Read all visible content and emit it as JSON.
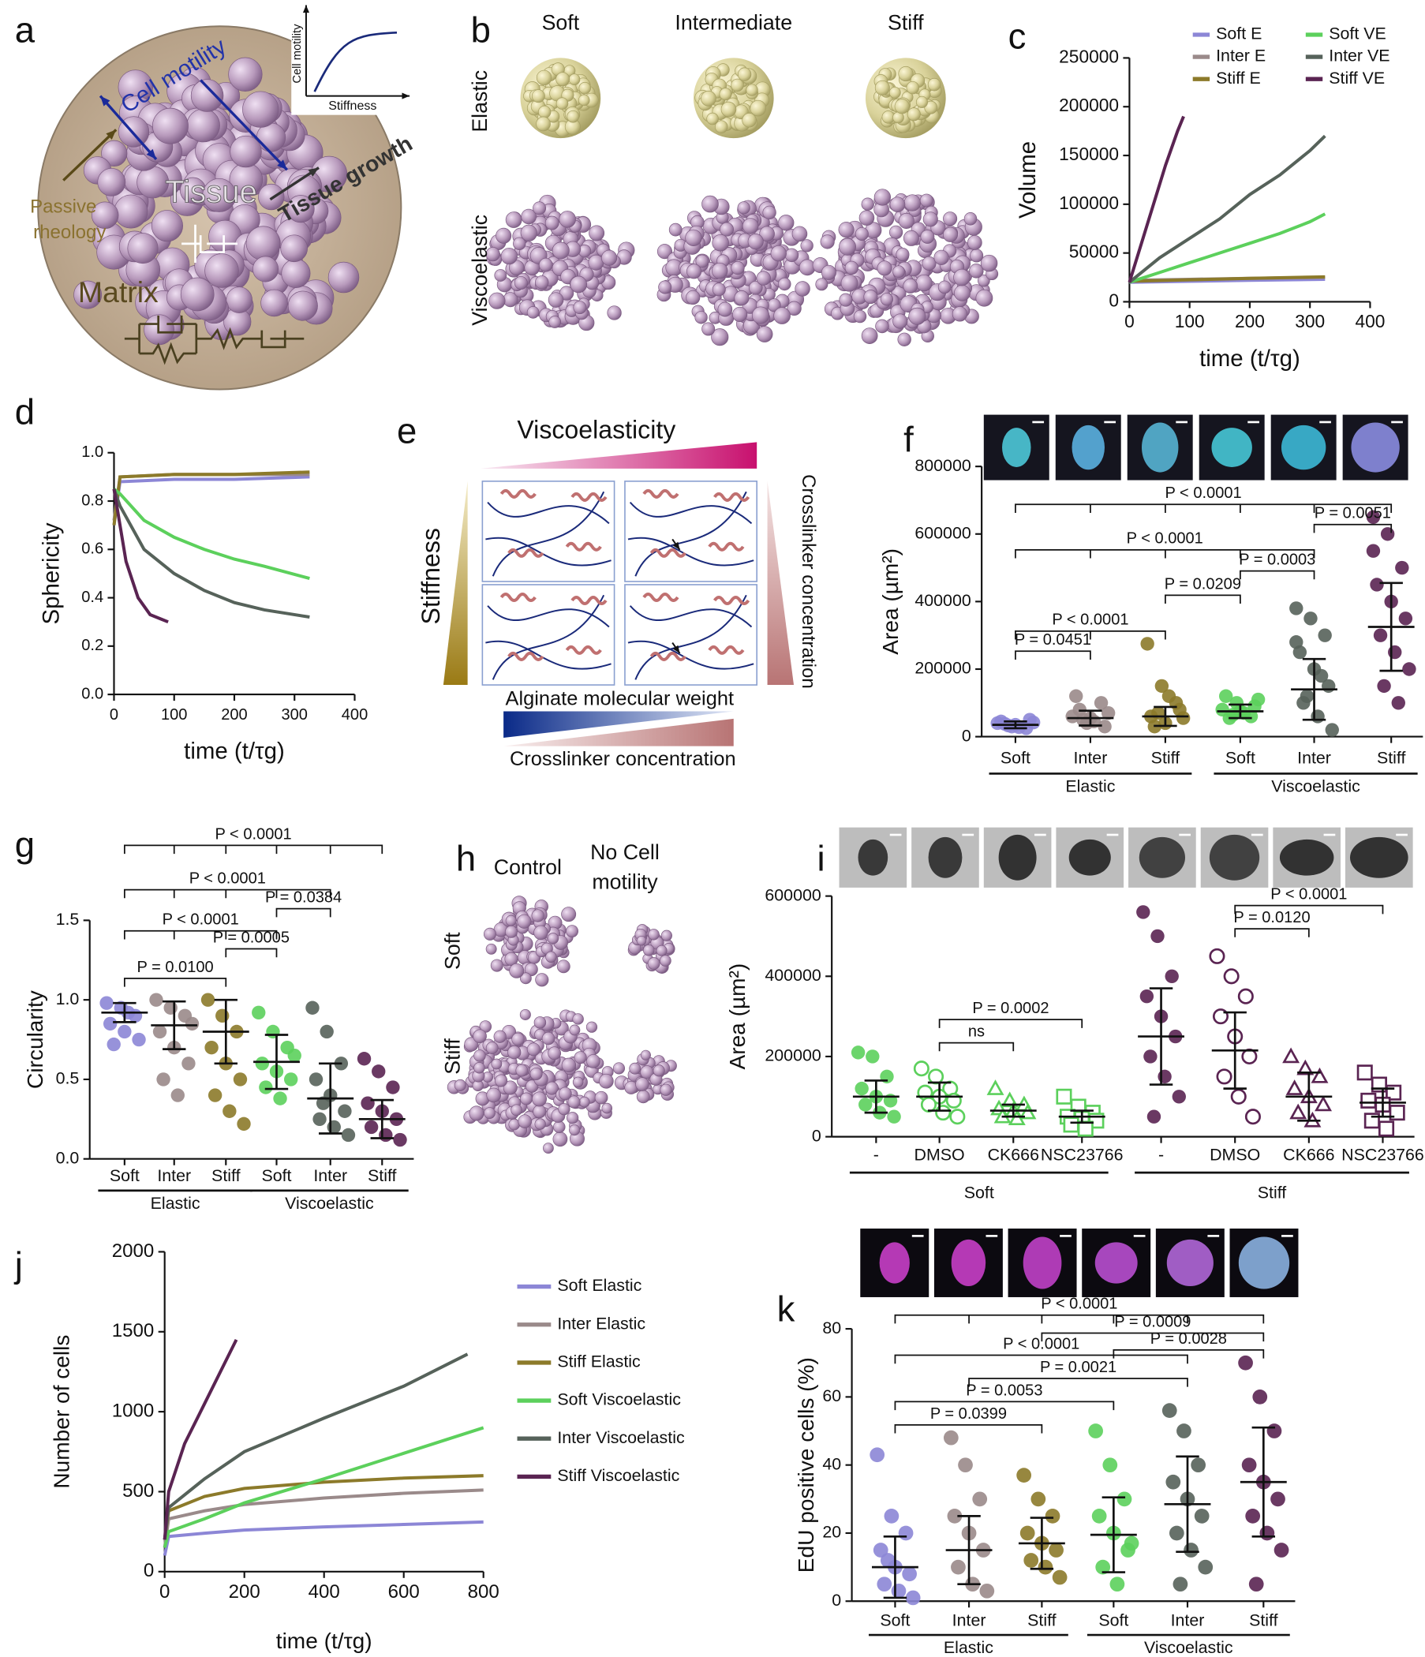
{
  "chart_data": [
    {
      "panel": "c",
      "type": "line",
      "ylabel": "Volume",
      "xlabel": "time (t/τg)",
      "xlim": [
        0,
        400
      ],
      "xticks": [
        0,
        100,
        200,
        300,
        400
      ],
      "ylim": [
        0,
        250000
      ],
      "yticks": [
        0,
        50000,
        100000,
        150000,
        200000,
        250000
      ],
      "legend": "top-right",
      "series": [
        {
          "name": "Soft E",
          "color": "#8c86d6",
          "x": [
            0,
            100,
            200,
            325
          ],
          "values": [
            20000,
            21000,
            22000,
            23000
          ]
        },
        {
          "name": "Inter E",
          "color": "#9a8a8a",
          "x": [
            0,
            100,
            200,
            325
          ],
          "values": [
            22000,
            23000,
            24000,
            25000
          ]
        },
        {
          "name": "Stiff E",
          "color": "#8c7a2a",
          "x": [
            0,
            100,
            200,
            325
          ],
          "values": [
            21000,
            22500,
            24000,
            25500
          ]
        },
        {
          "name": "Soft VE",
          "color": "#5cd05c",
          "x": [
            0,
            50,
            100,
            150,
            200,
            250,
            300,
            325
          ],
          "values": [
            20000,
            30000,
            40000,
            50000,
            60000,
            70000,
            82000,
            90000
          ]
        },
        {
          "name": "Inter VE",
          "color": "#56625a",
          "x": [
            0,
            50,
            100,
            150,
            200,
            250,
            300,
            325
          ],
          "values": [
            20000,
            45000,
            65000,
            85000,
            110000,
            130000,
            155000,
            170000
          ]
        },
        {
          "name": "Stiff VE",
          "color": "#5a2452",
          "x": [
            0,
            20,
            40,
            60,
            80,
            90
          ],
          "values": [
            20000,
            60000,
            100000,
            140000,
            175000,
            190000
          ]
        }
      ]
    },
    {
      "panel": "d",
      "type": "line",
      "ylabel": "Sphericity",
      "xlabel": "time (t/τg)",
      "xlim": [
        0,
        400
      ],
      "xticks": [
        0,
        100,
        200,
        300,
        400
      ],
      "ylim": [
        0,
        1
      ],
      "yticks": [
        {
          "value": 0,
          "label": "0.0"
        },
        0.2,
        0.4,
        0.6,
        0.8,
        {
          "value": 1,
          "label": "1.0"
        }
      ],
      "series": [
        {
          "color": "#8c86d6",
          "x": [
            0,
            10,
            100,
            200,
            325
          ],
          "values": [
            0.7,
            0.88,
            0.89,
            0.89,
            0.9
          ]
        },
        {
          "color": "#9a8a8a",
          "x": [
            0,
            10,
            100,
            200,
            325
          ],
          "values": [
            0.72,
            0.9,
            0.91,
            0.91,
            0.91
          ]
        },
        {
          "color": "#8c7a2a",
          "x": [
            0,
            10,
            100,
            200,
            325
          ],
          "values": [
            0.7,
            0.9,
            0.91,
            0.91,
            0.92
          ]
        },
        {
          "color": "#5cd05c",
          "x": [
            0,
            10,
            50,
            100,
            150,
            200,
            250,
            325
          ],
          "values": [
            0.85,
            0.83,
            0.72,
            0.65,
            0.6,
            0.56,
            0.53,
            0.48
          ]
        },
        {
          "color": "#56625a",
          "x": [
            0,
            10,
            50,
            100,
            150,
            200,
            250,
            325
          ],
          "values": [
            0.85,
            0.78,
            0.6,
            0.5,
            0.43,
            0.38,
            0.35,
            0.32
          ]
        },
        {
          "color": "#5a2452",
          "x": [
            0,
            10,
            20,
            40,
            60,
            80,
            90
          ],
          "values": [
            0.85,
            0.7,
            0.55,
            0.4,
            0.33,
            0.31,
            0.3
          ]
        }
      ]
    },
    {
      "panel": "f",
      "type": "dot",
      "ylabel": "Area (µm²)",
      "ylim": [
        0,
        800000
      ],
      "yticks": [
        0,
        200000,
        400000,
        600000,
        800000
      ],
      "categories": [
        "Soft",
        "Inter",
        "Stiff",
        "Soft",
        "Inter",
        "Stiff"
      ],
      "groups": [
        "Elastic",
        "Viscoelastic"
      ],
      "colors": [
        "#8c86d6",
        "#9a8a8a",
        "#8c7a2a",
        "#5cd05c",
        "#56625a",
        "#5a2452"
      ],
      "means": [
        35000,
        55000,
        60000,
        75000,
        140000,
        325000
      ],
      "sd": [
        10000,
        22000,
        28000,
        20000,
        90000,
        130000
      ],
      "points": [
        [
          40000,
          30000,
          25000,
          45000,
          35000,
          50000,
          38000,
          28000,
          42000,
          33000
        ],
        [
          60000,
          40000,
          100000,
          120000,
          55000,
          30000,
          80000,
          45000,
          70000,
          50000
        ],
        [
          275000,
          150000,
          100000,
          60000,
          40000,
          80000,
          30000,
          120000,
          55000,
          70000
        ],
        [
          80000,
          100000,
          60000,
          120000,
          75000,
          90000,
          55000,
          70000,
          110000,
          65000
        ],
        [
          380000,
          350000,
          300000,
          250000,
          200000,
          150000,
          100000,
          60000,
          20000,
          120000,
          180000,
          280000
        ],
        [
          650000,
          600000,
          500000,
          450000,
          400000,
          350000,
          300000,
          250000,
          200000,
          150000,
          100000,
          550000
        ]
      ],
      "comparisons": [
        "P < 0.0001",
        "P = 0.0051",
        "P < 0.0001",
        "P = 0.0003",
        "P = 0.0209",
        "P < 0.0001",
        "P = 0.0451"
      ]
    },
    {
      "panel": "g",
      "type": "dot",
      "ylabel": "Circularity",
      "ylim": [
        0,
        1.5
      ],
      "yticks": [
        {
          "value": 0,
          "label": "0.0"
        },
        0.5,
        {
          "value": 1,
          "label": "1.0"
        },
        1.5
      ],
      "categories": [
        "Soft",
        "Inter",
        "Stiff",
        "Soft",
        "Inter",
        "Stiff"
      ],
      "groups": [
        "Elastic",
        "Viscoelastic"
      ],
      "colors": [
        "#8c86d6",
        "#9a8a8a",
        "#8c7a2a",
        "#5cd05c",
        "#56625a",
        "#5a2452"
      ],
      "means": [
        0.92,
        0.84,
        0.8,
        0.61,
        0.38,
        0.25
      ],
      "sd": [
        0.06,
        0.15,
        0.2,
        0.17,
        0.22,
        0.12
      ],
      "points": [
        [
          0.98,
          0.95,
          0.9,
          0.85,
          0.8,
          0.75,
          0.72,
          0.92
        ],
        [
          1.0,
          0.95,
          0.9,
          0.8,
          0.7,
          0.6,
          0.5,
          0.4,
          0.85
        ],
        [
          1.0,
          0.9,
          0.8,
          0.7,
          0.6,
          0.5,
          0.4,
          0.3,
          0.22
        ],
        [
          0.92,
          0.8,
          0.7,
          0.6,
          0.55,
          0.5,
          0.45,
          0.38,
          0.65
        ],
        [
          0.95,
          0.8,
          0.6,
          0.5,
          0.4,
          0.3,
          0.25,
          0.2,
          0.15,
          0.35
        ],
        [
          0.63,
          0.55,
          0.45,
          0.35,
          0.3,
          0.25,
          0.2,
          0.15,
          0.12
        ]
      ],
      "comparisons": [
        "P < 0.0001",
        "P < 0.0001",
        "P = 0.0384",
        "P < 0.0001",
        "P = 0.0005",
        "P = 0.0100"
      ]
    },
    {
      "panel": "i",
      "type": "dot",
      "ylabel": "Area (µm²)",
      "ylim": [
        0,
        600000
      ],
      "yticks": [
        0,
        200000,
        400000,
        600000
      ],
      "categories": [
        "-",
        "DMSO",
        "CK666",
        "NSC23766",
        "-",
        "DMSO",
        "CK666",
        "NSC23766"
      ],
      "groups": [
        "Soft",
        "Stiff"
      ],
      "colors": [
        "#5cd05c",
        "#5cd05c",
        "#5cd05c",
        "#5cd05c",
        "#5a2452",
        "#5a2452",
        "#5a2452",
        "#5a2452"
      ],
      "markers": [
        "circle",
        "open-circle",
        "open-triangle",
        "open-square",
        "circle",
        "open-circle",
        "open-triangle",
        "open-square"
      ],
      "means": [
        100000,
        100000,
        65000,
        50000,
        250000,
        215000,
        100000,
        85000
      ],
      "sd": [
        40000,
        35000,
        15000,
        15000,
        120000,
        95000,
        60000,
        35000
      ],
      "points": [
        [
          210000,
          200000,
          150000,
          120000,
          100000,
          90000,
          80000,
          60000,
          50000
        ],
        [
          170000,
          150000,
          120000,
          110000,
          100000,
          90000,
          80000,
          60000,
          50000
        ],
        [
          120000,
          90000,
          80000,
          70000,
          65000,
          60000,
          50000,
          45000
        ],
        [
          100000,
          75000,
          60000,
          50000,
          45000,
          40000,
          30000,
          20000
        ],
        [
          560000,
          500000,
          400000,
          350000,
          300000,
          250000,
          200000,
          150000,
          100000,
          50000
        ],
        [
          450000,
          400000,
          350000,
          300000,
          250000,
          200000,
          150000,
          100000,
          50000
        ],
        [
          200000,
          170000,
          150000,
          120000,
          100000,
          80000,
          60000,
          40000
        ],
        [
          160000,
          130000,
          110000,
          90000,
          80000,
          60000,
          40000,
          20000
        ]
      ],
      "comparisons": [
        "P < 0.0001",
        "P = 0.0120",
        "P = 0.0002",
        "ns"
      ]
    },
    {
      "panel": "j",
      "type": "line",
      "ylabel": "Number of cells",
      "xlabel": "time (t/τg)",
      "xlim": [
        0,
        800
      ],
      "xticks": [
        0,
        200,
        400,
        600,
        800
      ],
      "ylim": [
        0,
        2000
      ],
      "yticks": [
        0,
        500,
        1000,
        1500,
        2000
      ],
      "legend": "right",
      "series": [
        {
          "name": "Soft Elastic",
          "color": "#8c86d6",
          "x": [
            0,
            10,
            100,
            200,
            400,
            600,
            800
          ],
          "values": [
            100,
            220,
            240,
            260,
            280,
            295,
            310
          ]
        },
        {
          "name": "Inter Elastic",
          "color": "#9a8a8a",
          "x": [
            0,
            10,
            100,
            200,
            400,
            600,
            800
          ],
          "values": [
            150,
            330,
            380,
            420,
            460,
            490,
            510
          ]
        },
        {
          "name": "Stiff Elastic",
          "color": "#8c7a2a",
          "x": [
            0,
            10,
            100,
            200,
            400,
            600,
            800
          ],
          "values": [
            200,
            380,
            470,
            520,
            560,
            585,
            600
          ]
        },
        {
          "name": "Soft Viscoelastic",
          "color": "#5cd05c",
          "x": [
            0,
            10,
            100,
            200,
            400,
            600,
            800
          ],
          "values": [
            150,
            250,
            330,
            430,
            580,
            740,
            900
          ]
        },
        {
          "name": "Inter Viscoelastic",
          "color": "#56625a",
          "x": [
            0,
            10,
            100,
            200,
            400,
            600,
            760
          ],
          "values": [
            200,
            400,
            580,
            750,
            960,
            1160,
            1360
          ]
        },
        {
          "name": "Stiff Viscoelastic",
          "color": "#5a2452",
          "x": [
            0,
            10,
            50,
            100,
            150,
            180
          ],
          "values": [
            200,
            500,
            800,
            1050,
            1300,
            1450
          ]
        }
      ]
    },
    {
      "panel": "k",
      "type": "dot",
      "ylabel": "EdU positive cells (%)",
      "ylim": [
        0,
        80
      ],
      "yticks": [
        0,
        20,
        40,
        60,
        80
      ],
      "categories": [
        "Soft",
        "Inter",
        "Stiff",
        "Soft",
        "Inter",
        "Stiff"
      ],
      "groups": [
        "Elastic",
        "Viscoelastic"
      ],
      "colors": [
        "#8c86d6",
        "#9a8a8a",
        "#8c7a2a",
        "#5cd05c",
        "#56625a",
        "#5a2452"
      ],
      "means": [
        10,
        15,
        17,
        19.5,
        28.5,
        35
      ],
      "sd": [
        9,
        10,
        7.5,
        11,
        14,
        16
      ],
      "points": [
        [
          43,
          25,
          20,
          15,
          10,
          8,
          5,
          3,
          1,
          12
        ],
        [
          48,
          40,
          30,
          25,
          20,
          15,
          10,
          5,
          3
        ],
        [
          37,
          30,
          25,
          20,
          17,
          15,
          12,
          10,
          7
        ],
        [
          50,
          40,
          30,
          25,
          20,
          15,
          10,
          5,
          17
        ],
        [
          56,
          50,
          40,
          35,
          30,
          25,
          20,
          15,
          10,
          5
        ],
        [
          70,
          60,
          50,
          40,
          35,
          30,
          25,
          20,
          15,
          5
        ]
      ],
      "comparisons": [
        "P < 0.0001",
        "P = 0.0009",
        "P < 0.0001",
        "P = 0.0028",
        "P = 0.0021",
        "P = 0.0053",
        "P = 0.0399"
      ]
    }
  ],
  "diagrams": [
    {
      "panel": "a",
      "cell_motility": "Cell motility",
      "tissue": "Tissue",
      "tissue_growth": "Tissue growth",
      "passive_rheology": [
        "Passive",
        "rheology"
      ],
      "matrix": "Matrix",
      "inset": {
        "ylabel": "Cell motility",
        "xlabel": "Stiffness"
      }
    },
    {
      "panel": "b",
      "columns": [
        "Soft",
        "Intermediate",
        "Stiff"
      ],
      "rows": [
        "Elastic",
        "Viscoelastic"
      ]
    },
    {
      "panel": "e",
      "top": "Viscoelasticity",
      "left": "Stiffness",
      "right": "Crosslinker concentration",
      "bottom": "Alginate molecular weight",
      "bottom2": "Crosslinker concentration"
    },
    {
      "panel": "h",
      "columns": [
        [
          "Control"
        ],
        [
          "No Cell",
          "motility"
        ]
      ],
      "rows": [
        "Soft",
        "Stiff"
      ]
    }
  ]
}
